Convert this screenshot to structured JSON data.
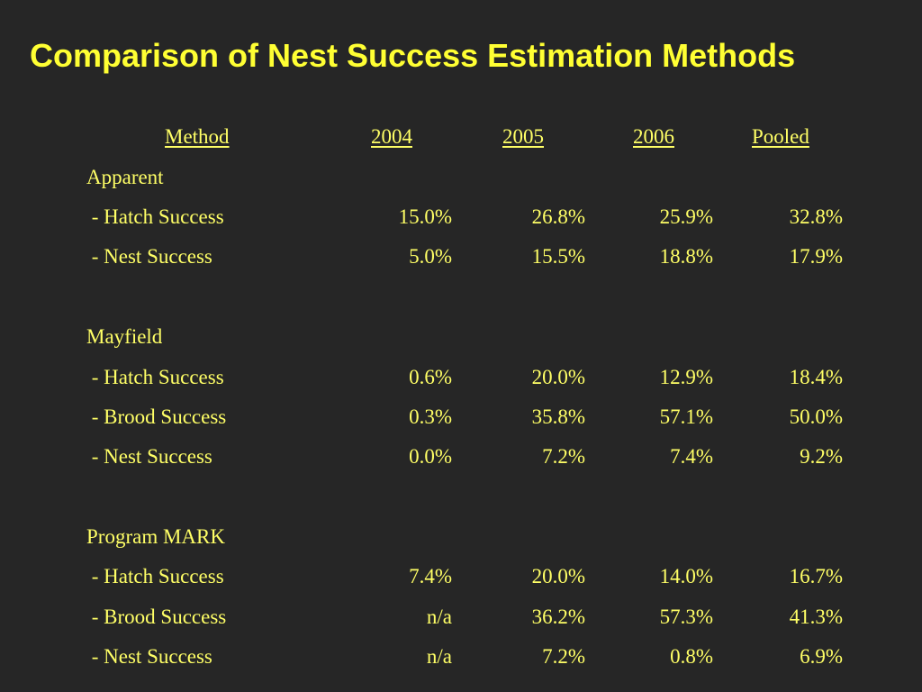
{
  "title": "Comparison of Nest Success Estimation Methods",
  "colors": {
    "background": "#262626",
    "title": "#ffff33",
    "text": "#ffff66"
  },
  "table": {
    "headers": {
      "method": "Method",
      "y2004": "2004",
      "y2005": "2005",
      "y2006": "2006",
      "pooled": "Pooled"
    },
    "groups": [
      {
        "name": "Apparent",
        "rows": [
          {
            "label": " - Hatch Success",
            "y2004": "15.0%",
            "y2005": "26.8%",
            "y2006": "25.9%",
            "pooled": "32.8%"
          },
          {
            "label": " - Nest Success",
            "y2004": "5.0%",
            "y2005": "15.5%",
            "y2006": "18.8%",
            "pooled": "17.9%"
          }
        ]
      },
      {
        "name": "Mayfield",
        "rows": [
          {
            "label": " - Hatch Success",
            "y2004": "0.6%",
            "y2005": "20.0%",
            "y2006": "12.9%",
            "pooled": "18.4%"
          },
          {
            "label": " - Brood Success",
            "y2004": "0.3%",
            "y2005": "35.8%",
            "y2006": "57.1%",
            "pooled": "50.0%"
          },
          {
            "label": " - Nest Success",
            "y2004": "0.0%",
            "y2005": "7.2%",
            "y2006": "7.4%",
            "pooled": "9.2%"
          }
        ]
      },
      {
        "name": "Program MARK",
        "rows": [
          {
            "label": " - Hatch Success",
            "y2004": "7.4%",
            "y2005": "20.0%",
            "y2006": "14.0%",
            "pooled": "16.7%"
          },
          {
            "label": " - Brood Success",
            "y2004": "n/a",
            "y2005": "36.2%",
            "y2006": "57.3%",
            "pooled": "41.3%"
          },
          {
            "label": " - Nest Success",
            "y2004": "n/a",
            "y2005": "7.2%",
            "y2006": "0.8%",
            "pooled": "6.9%"
          }
        ]
      }
    ]
  }
}
